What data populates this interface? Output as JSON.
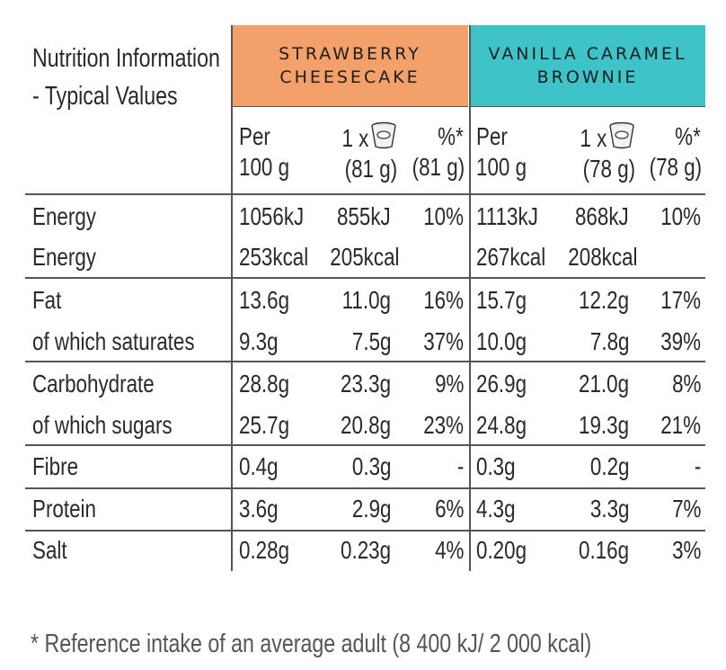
{
  "table": {
    "title_line1": "Nutrition Information",
    "title_line2": "- Typical Values",
    "products": [
      {
        "name_line1": "STRAWBERRY",
        "name_line2": "CHEESECAKE",
        "color": "#f4a06a",
        "sub": {
          "per_1": "Per",
          "per_2": "100 g",
          "serv_1": "1 x",
          "serv_2": "(81 g)",
          "pct_1": "%*",
          "pct_2": "(81 g)"
        }
      },
      {
        "name_line1": "VANILLA CARAMEL",
        "name_line2": "BROWNIE",
        "color": "#3dc3c8",
        "sub": {
          "per_1": "Per",
          "per_2": "100 g",
          "serv_1": "1 x",
          "serv_2": "(78 g)",
          "pct_1": "%*",
          "pct_2": "(78 g)"
        }
      }
    ],
    "rows": [
      {
        "label": "Energy",
        "v": [
          "1056kJ",
          "855kJ",
          "10%",
          "1113kJ",
          "868kJ",
          "10%"
        ]
      },
      {
        "label": "Energy",
        "v": [
          "253kcal",
          "205kcal",
          "",
          "267kcal",
          "208kcal",
          ""
        ]
      },
      {
        "label": "Fat",
        "v": [
          "13.6g",
          "11.0g",
          "16%",
          "15.7g",
          "12.2g",
          "17%"
        ]
      },
      {
        "label": "of which saturates",
        "v": [
          "9.3g",
          "7.5g",
          "37%",
          "10.0g",
          "7.8g",
          "39%"
        ]
      },
      {
        "label": "Carbohydrate",
        "v": [
          "28.8g",
          "23.3g",
          "9%",
          "26.9g",
          "21.0g",
          "8%"
        ]
      },
      {
        "label": "of which sugars",
        "v": [
          "25.7g",
          "20.8g",
          "23%",
          "24.8g",
          "19.3g",
          "21%"
        ]
      },
      {
        "label": "Fibre",
        "v": [
          "0.4g",
          "0.3g",
          "-",
          "0.3g",
          "0.2g",
          "-"
        ]
      },
      {
        "label": "Protein",
        "v": [
          "3.6g",
          "2.9g",
          "6%",
          "4.3g",
          "3.3g",
          "7%"
        ]
      },
      {
        "label": "Salt",
        "v": [
          "0.28g",
          "0.23g",
          "4%",
          "0.20g",
          "0.16g",
          "3%"
        ]
      }
    ],
    "footnote": "* Reference intake of an average adult (8 400 kJ/ 2 000 kcal)",
    "icon": "yogurt-pot-icon"
  }
}
